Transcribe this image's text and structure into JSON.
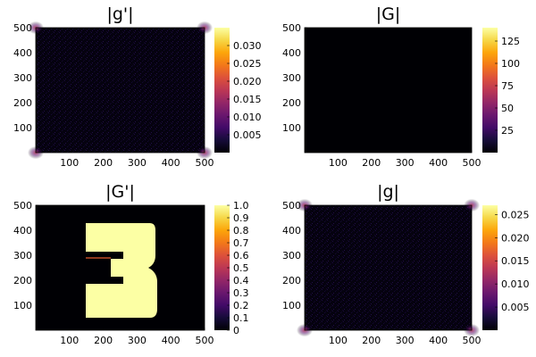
{
  "chart_data": [
    {
      "type": "heatmap",
      "title": "|g'|",
      "xlim": [
        0,
        500
      ],
      "ylim": [
        0,
        500
      ],
      "x_ticks": [
        "100",
        "200",
        "300",
        "400",
        "500"
      ],
      "y_ticks": [
        "100",
        "200",
        "300",
        "400",
        "500"
      ],
      "colorbar": {
        "min": 0,
        "max": 0.035,
        "ticks": [
          "0.005",
          "0.010",
          "0.015",
          "0.020",
          "0.025",
          "0.030"
        ],
        "colormap": "inferno"
      },
      "description_values": {
        "background": 0.0005,
        "corner_peaks": 0.035
      }
    },
    {
      "type": "heatmap",
      "title": "|G|",
      "xlim": [
        0,
        500
      ],
      "ylim": [
        0,
        500
      ],
      "x_ticks": [
        "100",
        "200",
        "300",
        "400",
        "500"
      ],
      "y_ticks": [
        "100",
        "200",
        "300",
        "400",
        "500"
      ],
      "colorbar": {
        "min": 0,
        "max": 140,
        "ticks": [
          "25",
          "50",
          "75",
          "100",
          "125"
        ],
        "colormap": "inferno"
      },
      "description_values": {
        "background": 0,
        "corner_peaks": 140
      }
    },
    {
      "type": "heatmap",
      "title": "|G'|",
      "xlim": [
        0,
        500
      ],
      "ylim": [
        0,
        500
      ],
      "x_ticks": [
        "100",
        "200",
        "300",
        "400",
        "500"
      ],
      "y_ticks": [
        "100",
        "200",
        "300",
        "400",
        "500"
      ],
      "colorbar": {
        "min": 0,
        "max": 1.0,
        "ticks": [
          "0",
          "0.1",
          "0.2",
          "0.3",
          "0.4",
          "0.5",
          "0.6",
          "0.7",
          "0.8",
          "0.9",
          "1.0"
        ],
        "colormap": "inferno"
      },
      "description_values": {
        "background": 0,
        "digit_shape_value": 1.0
      }
    },
    {
      "type": "heatmap",
      "title": "|g|",
      "xlim": [
        0,
        500
      ],
      "ylim": [
        0,
        500
      ],
      "x_ticks": [
        "100",
        "200",
        "300",
        "400",
        "500"
      ],
      "y_ticks": [
        "100",
        "200",
        "300",
        "400",
        "500"
      ],
      "colorbar": {
        "min": 0,
        "max": 0.027,
        "ticks": [
          "0.005",
          "0.010",
          "0.015",
          "0.020",
          "0.025"
        ],
        "colormap": "inferno"
      },
      "description_values": {
        "background": 0.001,
        "corner_peaks": 0.027
      }
    }
  ]
}
